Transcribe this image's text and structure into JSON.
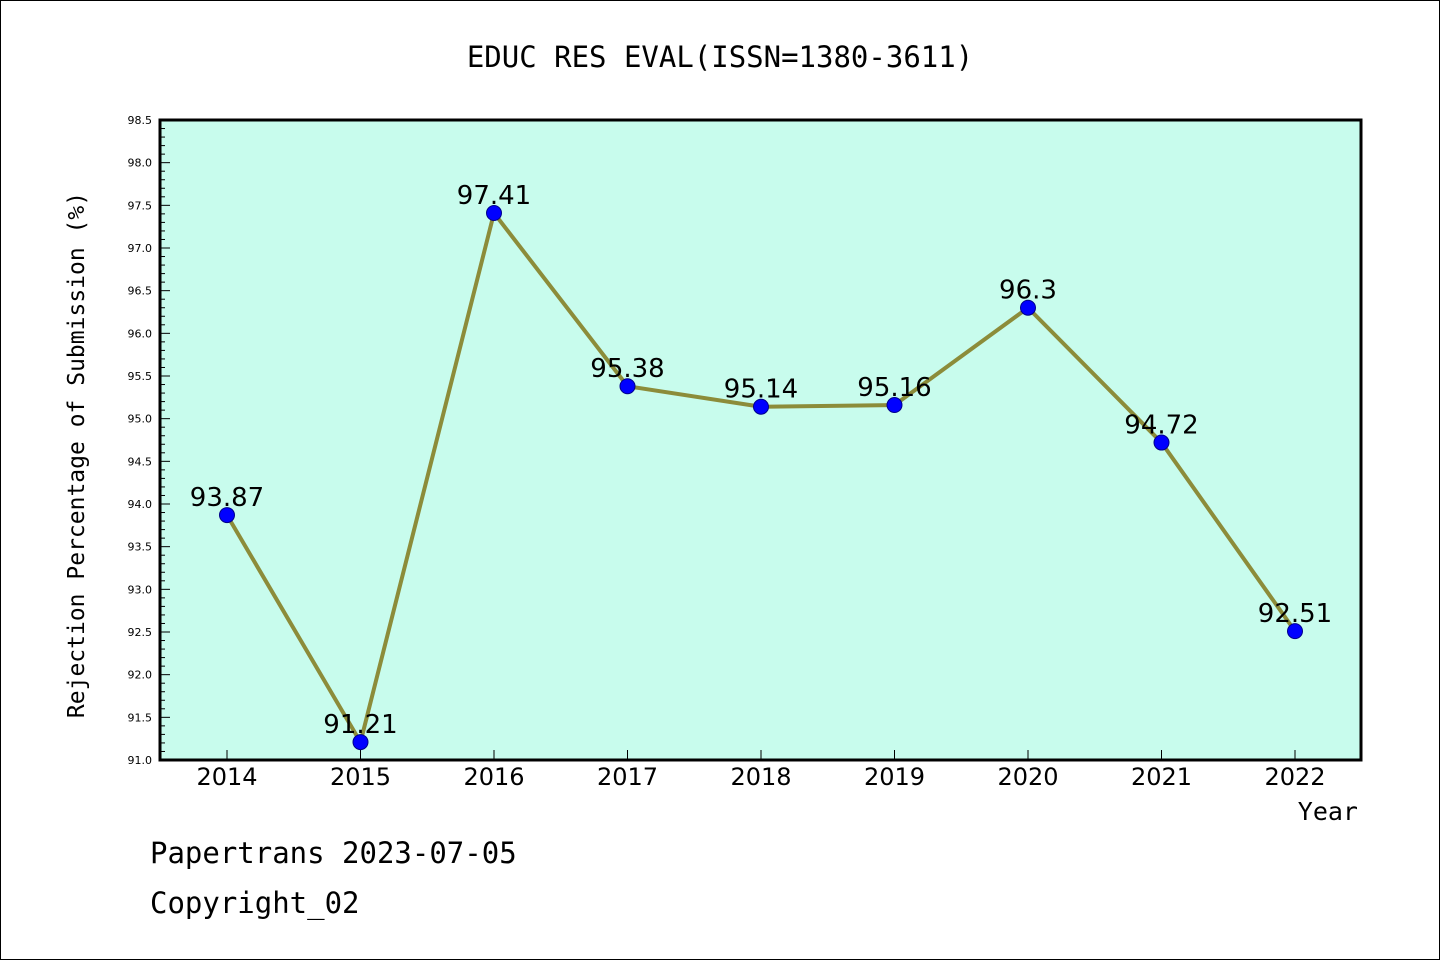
{
  "chart_data": {
    "type": "line",
    "title": "EDUC RES EVAL(ISSN=1380-3611)",
    "xlabel": "Year",
    "ylabel": "Rejection Percentage of Submission (%)",
    "categories": [
      "2014",
      "2015",
      "2016",
      "2017",
      "2018",
      "2019",
      "2020",
      "2021",
      "2022"
    ],
    "series": [
      {
        "values": [
          93.87,
          91.21,
          97.41,
          95.38,
          95.14,
          95.16,
          96.3,
          94.72,
          92.51
        ],
        "labels": [
          "93.87",
          "91.21",
          "97.41",
          "95.38",
          "95.14",
          "95.16",
          "96.3",
          "94.72",
          "92.51"
        ]
      }
    ],
    "ylim": [
      91.0,
      98.5
    ],
    "yticks": [
      "91.0",
      "91.5",
      "92.0",
      "92.5",
      "93.0",
      "93.5",
      "94.0",
      "94.5",
      "95.0",
      "95.5",
      "96.0",
      "96.5",
      "97.0",
      "97.5",
      "98.0",
      "98.5"
    ],
    "grid": false,
    "legend": "none",
    "colors": {
      "plot_background": "#c8fced",
      "line": "#8c8c3a",
      "marker": "#0000ff"
    }
  },
  "footer": {
    "line1": "Papertrans 2023-07-05",
    "line2": "Copyright_02"
  }
}
